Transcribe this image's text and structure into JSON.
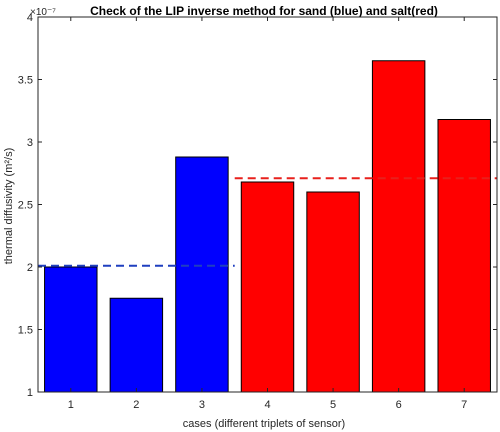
{
  "chart_data": {
    "type": "bar",
    "title": "Check of the LIP inverse method for sand (blue) and salt(red)",
    "xlabel": "cases (different triplets of sensor)",
    "ylabel": "thermal diffusivity (m²/s)",
    "y_exponent": "×10⁻⁷",
    "categories": [
      "1",
      "2",
      "3",
      "4",
      "5",
      "6",
      "7"
    ],
    "values": [
      2.0,
      1.75,
      2.88,
      2.68,
      2.6,
      3.65,
      3.18
    ],
    "bar_colors": [
      "#0000ff",
      "#0000ff",
      "#0000ff",
      "#ff0000",
      "#ff0000",
      "#ff0000",
      "#ff0000"
    ],
    "ylim": [
      1,
      4
    ],
    "yticks": [
      1,
      1.5,
      2,
      2.5,
      3,
      3.5,
      4
    ],
    "ytick_labels": [
      "1",
      "1.5",
      "2",
      "2.5",
      "3",
      "3.5",
      "4"
    ],
    "reference_lines": [
      {
        "group": "sand",
        "color": "#1f3fbf",
        "value": 2.01,
        "x_from": 0.5,
        "x_to": 3.5
      },
      {
        "group": "salt",
        "color": "#e8201c",
        "value": 2.71,
        "x_from": 3.5,
        "x_to": 7.5
      }
    ],
    "xlim": [
      0.5,
      7.5
    ],
    "grid": false,
    "legend": "none"
  }
}
